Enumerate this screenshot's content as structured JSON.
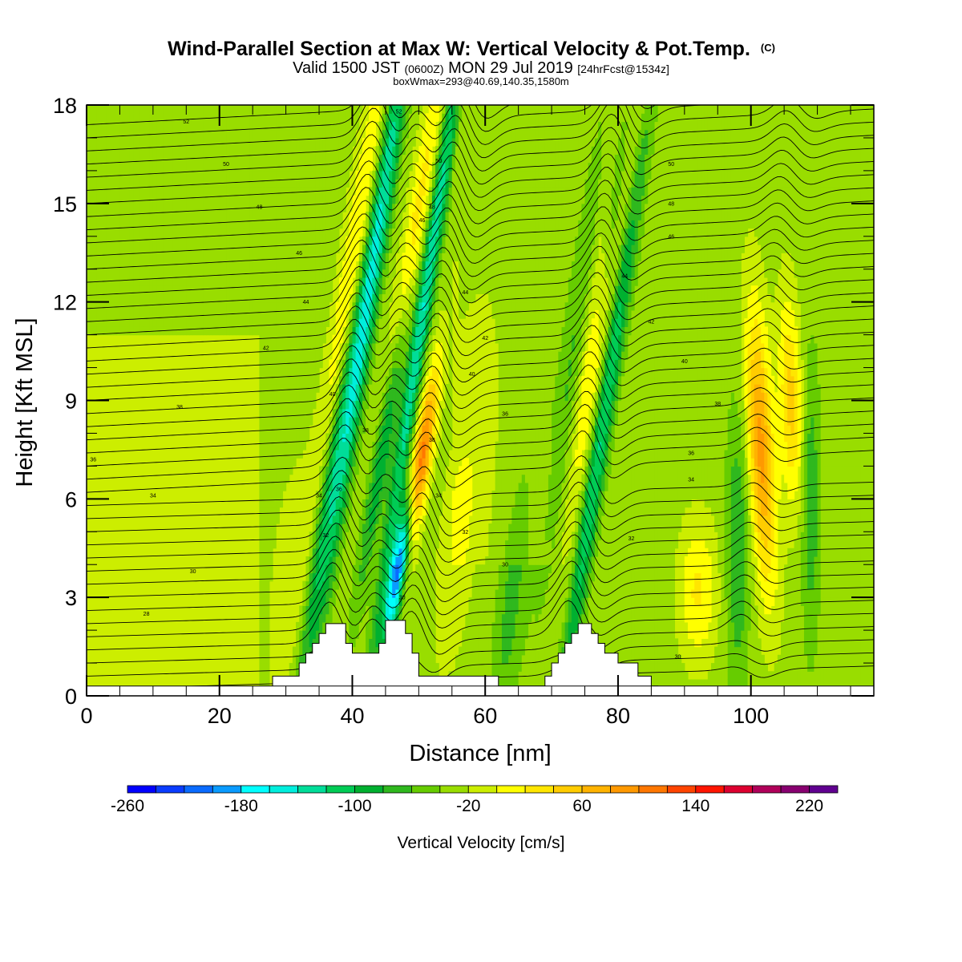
{
  "header": {
    "title_main": "Wind-Parallel Section at Max W: Vertical Velocity & Pot.Temp.",
    "title_mark": "(C)",
    "valid_a": "Valid 1500 JST",
    "valid_b": "(0600Z)",
    "valid_c": "MON 29 Jul 2019",
    "valid_d": "[24hrFcst@1534z]",
    "box_info": "boxWmax=293@40.69,140.35,1580m"
  },
  "colorbar": {
    "label": "Vertical Velocity [cm/s]",
    "tick_labels": [
      "-260",
      "-180",
      "-100",
      "-20",
      "60",
      "140",
      "220"
    ],
    "colors": [
      "#0000ff",
      "#0a3cff",
      "#0a6bff",
      "#0a9bff",
      "#00ffff",
      "#00eedd",
      "#00dd99",
      "#00cc55",
      "#00b030",
      "#2fb81e",
      "#66cc00",
      "#99dd00",
      "#ccee00",
      "#ffff00",
      "#ffe600",
      "#ffcc00",
      "#ffb300",
      "#ff9900",
      "#ff7700",
      "#ff4400",
      "#ff1500",
      "#dd0030",
      "#b0005a",
      "#880070",
      "#600090"
    ]
  },
  "chart_data": {
    "type": "heatmap",
    "title": "Wind-Parallel Section at Max W: Vertical Velocity & Pot.Temp.",
    "xlabel": "Distance [nm]",
    "ylabel": "Height [Kft MSL]",
    "x_ticks": [
      0,
      20,
      40,
      60,
      80,
      100
    ],
    "y_ticks": [
      0,
      3,
      6,
      9,
      12,
      15,
      18
    ],
    "xlim": [
      0,
      118.5
    ],
    "ylim": [
      0,
      18
    ],
    "colorbar_range": [
      -260,
      260
    ],
    "background_value": -20,
    "terrain": [
      [
        26,
        0
      ],
      [
        28,
        0
      ],
      [
        28,
        0.6
      ],
      [
        32,
        0.6
      ],
      [
        32,
        1.0
      ],
      [
        33,
        1.0
      ],
      [
        33,
        1.3
      ],
      [
        34,
        1.3
      ],
      [
        34,
        1.6
      ],
      [
        35,
        1.6
      ],
      [
        35,
        1.9
      ],
      [
        36,
        1.9
      ],
      [
        36,
        2.2
      ],
      [
        39,
        2.2
      ],
      [
        39,
        1.6
      ],
      [
        40,
        1.6
      ],
      [
        40,
        1.3
      ],
      [
        44,
        1.3
      ],
      [
        44,
        1.6
      ],
      [
        45,
        1.6
      ],
      [
        45,
        2.3
      ],
      [
        48,
        2.3
      ],
      [
        48,
        1.9
      ],
      [
        49,
        1.9
      ],
      [
        49,
        1.3
      ],
      [
        50,
        1.3
      ],
      [
        50,
        0.6
      ],
      [
        62,
        0.6
      ],
      [
        62,
        0.3
      ],
      [
        69,
        0.3
      ],
      [
        69,
        0.6
      ],
      [
        70,
        0.6
      ],
      [
        70,
        1.0
      ],
      [
        71,
        1.0
      ],
      [
        71,
        1.3
      ],
      [
        72,
        1.3
      ],
      [
        72,
        1.6
      ],
      [
        73,
        1.6
      ],
      [
        73,
        1.9
      ],
      [
        74,
        1.9
      ],
      [
        74,
        2.2
      ],
      [
        76,
        2.2
      ],
      [
        76,
        1.9
      ],
      [
        77,
        1.9
      ],
      [
        77,
        1.6
      ],
      [
        78,
        1.6
      ],
      [
        78,
        1.3
      ],
      [
        80,
        1.3
      ],
      [
        80,
        1.0
      ],
      [
        83,
        1.0
      ],
      [
        83,
        0.6
      ],
      [
        85,
        0.6
      ],
      [
        85,
        0.3
      ],
      [
        86,
        0.3
      ],
      [
        86,
        0
      ]
    ],
    "w_features": [
      {
        "x": 37,
        "y": 7,
        "amp": -90,
        "sx": 1.1,
        "sy": 6,
        "tilt": 0.45
      },
      {
        "x": 40.5,
        "y": 13,
        "amp": 80,
        "sx": 1.5,
        "sy": 5,
        "tilt": 0.45
      },
      {
        "x": 43,
        "y": 13,
        "amp": -130,
        "sx": 1.1,
        "sy": 6.5,
        "tilt": 0.45
      },
      {
        "x": 47.3,
        "y": 4.2,
        "amp": -260,
        "sx": 0.9,
        "sy": 1.7,
        "tilt": 0.5
      },
      {
        "x": 45.5,
        "y": 8.5,
        "amp": -120,
        "sx": 1.0,
        "sy": 3.5,
        "tilt": 0.5
      },
      {
        "x": 49.7,
        "y": 6.5,
        "amp": 190,
        "sx": 1.0,
        "sy": 2.2,
        "tilt": 0.5
      },
      {
        "x": 48.5,
        "y": 12.5,
        "amp": 90,
        "sx": 1.2,
        "sy": 4.5,
        "tilt": 0.45
      },
      {
        "x": 50.8,
        "y": 12,
        "amp": -120,
        "sx": 0.9,
        "sy": 7,
        "tilt": 0.45
      },
      {
        "x": 77.5,
        "y": 12.5,
        "amp": 90,
        "sx": 1.5,
        "sy": 5,
        "tilt": 0.45
      },
      {
        "x": 77.5,
        "y": 8,
        "amp": -100,
        "sx": 1.0,
        "sy": 6.5,
        "tilt": 0.45
      },
      {
        "x": 79.5,
        "y": 15,
        "amp": -90,
        "sx": 1.0,
        "sy": 3,
        "tilt": 0.4
      },
      {
        "x": 73.5,
        "y": 10,
        "amp": -50,
        "sx": 1.5,
        "sy": 5,
        "tilt": 0.4
      },
      {
        "x": 101.5,
        "y": 7.5,
        "amp": 120,
        "sx": 1.4,
        "sy": 3,
        "tilt": -0.15
      },
      {
        "x": 106,
        "y": 9,
        "amp": 80,
        "sx": 1.2,
        "sy": 2.2,
        "tilt": -0.1
      },
      {
        "x": 92,
        "y": 3.2,
        "amp": 55,
        "sx": 2.0,
        "sy": 1.5,
        "tilt": 0
      },
      {
        "x": 98,
        "y": 4.5,
        "amp": -55,
        "sx": 1.2,
        "sy": 3,
        "tilt": 0
      },
      {
        "x": 109,
        "y": 6,
        "amp": -50,
        "sx": 1.0,
        "sy": 3,
        "tilt": 0
      },
      {
        "x": 56,
        "y": 5,
        "amp": 30,
        "sx": 2,
        "sy": 3,
        "tilt": 0.3
      },
      {
        "x": 64,
        "y": 3,
        "amp": -40,
        "sx": 1.5,
        "sy": 3,
        "tilt": 0.3
      },
      {
        "x": 31,
        "y": 3,
        "amp": 25,
        "sx": 2.5,
        "sy": 3,
        "tilt": 0.2
      }
    ],
    "theta_contours": {
      "y_at_x0": [
        0.2,
        0.6,
        1.0,
        1.4,
        1.8,
        2.2,
        2.6,
        3.0,
        3.4,
        3.8,
        4.2,
        4.6,
        5.0,
        5.4,
        5.8,
        6.2,
        6.6,
        7.0,
        7.4,
        7.8,
        8.2,
        8.6,
        9.0,
        9.4,
        9.8,
        10.2,
        10.6,
        11.0,
        11.4,
        11.8,
        12.2,
        12.6,
        13.0,
        13.4,
        13.8,
        14.2,
        14.6,
        15.0,
        15.4,
        15.8,
        16.2,
        16.6,
        17.0,
        17.4
      ],
      "waves": [
        {
          "x": 39,
          "amp": 1.5
        },
        {
          "x": 45,
          "amp": 1.2
        },
        {
          "x": 51,
          "amp": 1.4
        },
        {
          "x": 75,
          "amp": 1.3
        },
        {
          "x": 101,
          "amp": 0.6
        }
      ]
    },
    "contour_labels": [
      {
        "x": 9,
        "y": 2.5,
        "text": "28"
      },
      {
        "x": 16,
        "y": 3.8,
        "text": "30"
      },
      {
        "x": 36,
        "y": 4.9,
        "text": "32"
      },
      {
        "x": 35,
        "y": 6.1,
        "text": "34"
      },
      {
        "x": 38,
        "y": 6.3,
        "text": "36"
      },
      {
        "x": 1,
        "y": 7.2,
        "text": "36"
      },
      {
        "x": 10,
        "y": 6.1,
        "text": "34"
      },
      {
        "x": 14,
        "y": 8.8,
        "text": "38"
      },
      {
        "x": 37,
        "y": 9.2,
        "text": "40"
      },
      {
        "x": 42,
        "y": 8.1,
        "text": "38"
      },
      {
        "x": 27,
        "y": 10.6,
        "text": "42"
      },
      {
        "x": 33,
        "y": 12.0,
        "text": "44"
      },
      {
        "x": 32,
        "y": 13.5,
        "text": "46"
      },
      {
        "x": 26,
        "y": 14.9,
        "text": "48"
      },
      {
        "x": 21,
        "y": 16.2,
        "text": "50"
      },
      {
        "x": 15,
        "y": 17.5,
        "text": "52"
      },
      {
        "x": 47,
        "y": 17.8,
        "text": "52"
      },
      {
        "x": 53,
        "y": 16.3,
        "text": "50"
      },
      {
        "x": 52,
        "y": 14.9,
        "text": "48"
      },
      {
        "x": 50.5,
        "y": 14.5,
        "text": "46"
      },
      {
        "x": 57,
        "y": 12.3,
        "text": "44"
      },
      {
        "x": 60,
        "y": 10.9,
        "text": "42"
      },
      {
        "x": 58,
        "y": 9.8,
        "text": "40"
      },
      {
        "x": 63,
        "y": 8.6,
        "text": "36"
      },
      {
        "x": 52,
        "y": 7.8,
        "text": "38"
      },
      {
        "x": 53,
        "y": 6.1,
        "text": "34"
      },
      {
        "x": 57,
        "y": 5.0,
        "text": "32"
      },
      {
        "x": 63,
        "y": 4.0,
        "text": "30"
      },
      {
        "x": 47.5,
        "y": 3.0,
        "text": "30"
      },
      {
        "x": 88,
        "y": 15.0,
        "text": "48"
      },
      {
        "x": 88,
        "y": 14.0,
        "text": "46"
      },
      {
        "x": 81,
        "y": 12.8,
        "text": "44"
      },
      {
        "x": 85,
        "y": 11.4,
        "text": "42"
      },
      {
        "x": 90,
        "y": 10.2,
        "text": "40"
      },
      {
        "x": 95,
        "y": 8.9,
        "text": "38"
      },
      {
        "x": 91,
        "y": 7.4,
        "text": "36"
      },
      {
        "x": 91,
        "y": 6.6,
        "text": "34"
      },
      {
        "x": 82,
        "y": 4.8,
        "text": "32"
      },
      {
        "x": 89,
        "y": 1.2,
        "text": "30"
      },
      {
        "x": 88,
        "y": 16.2,
        "text": "50"
      }
    ]
  }
}
